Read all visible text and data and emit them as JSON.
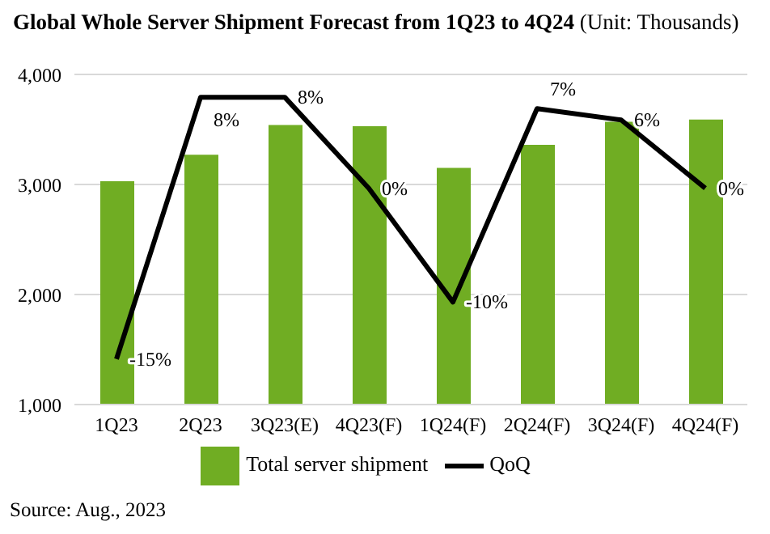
{
  "chart_data": {
    "type": "bar",
    "title": "Global Whole Server Shipment Forecast from 1Q23 to 4Q24",
    "subtitle": "(Unit: Thousands)",
    "categories": [
      "1Q23",
      "2Q23",
      "3Q23(E)",
      "4Q23(F)",
      "1Q24(F)",
      "2Q24(F)",
      "3Q24(F)",
      "4Q24(F)"
    ],
    "series": [
      {
        "name": "Total server shipment",
        "color": "#70ad23",
        "values": [
          3030,
          3270,
          3540,
          3530,
          3150,
          3360,
          3570,
          3590
        ]
      },
      {
        "name": "QoQ",
        "type": "line",
        "axis": "y2",
        "color": "#000000",
        "values": [
          -15,
          8,
          8,
          0,
          -10,
          7,
          6,
          0
        ],
        "value_labels": [
          "-15%",
          "8%",
          "8%",
          "0%",
          "-10%",
          "7%",
          "6%",
          "0%"
        ]
      }
    ],
    "ylim": [
      1000,
      4000
    ],
    "yticks": [
      {
        "value": 1000,
        "label": "1,000"
      },
      {
        "value": 2000,
        "label": "2,000"
      },
      {
        "value": 3000,
        "label": "3,000"
      },
      {
        "value": 4000,
        "label": "4,000"
      }
    ],
    "y2lim": [
      -19,
      10
    ],
    "grid": "y",
    "legend": "bottom",
    "marker": "none",
    "annotations": [
      "Source: Aug., 2023"
    ]
  }
}
